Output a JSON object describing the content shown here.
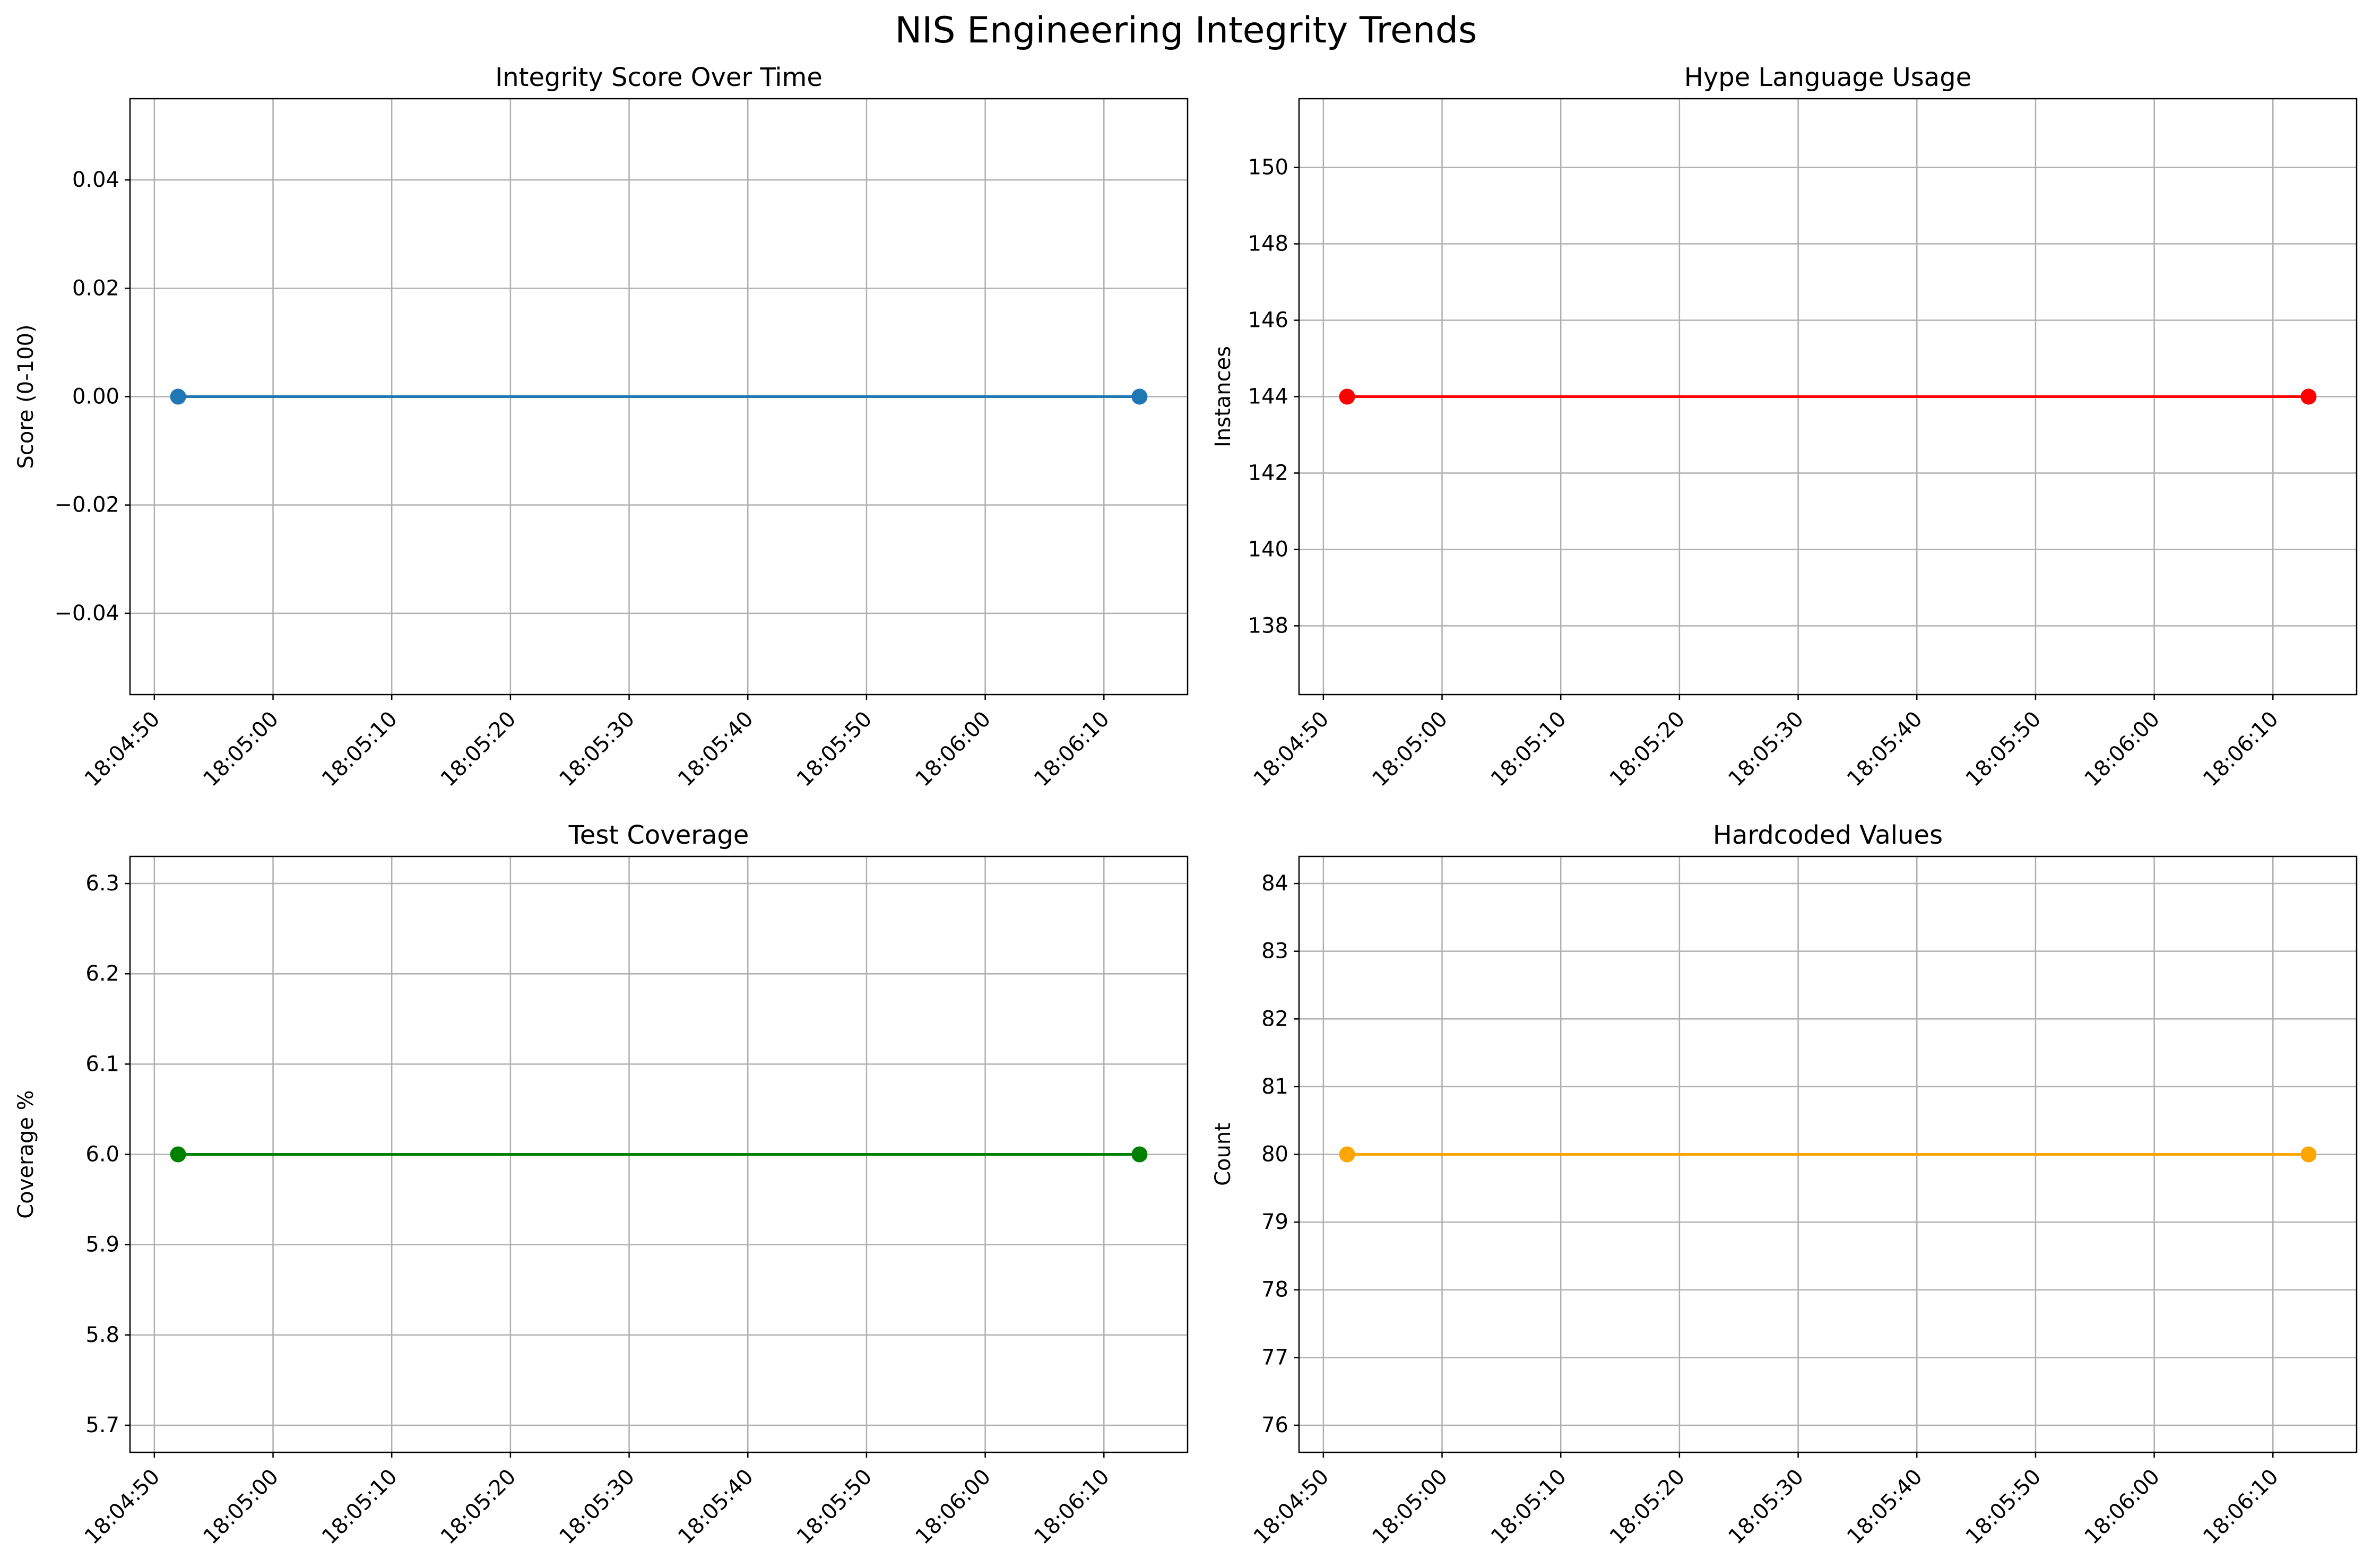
{
  "figure": {
    "title": "NIS Engineering Integrity Trends"
  },
  "chart_data": [
    {
      "type": "line",
      "title": "Integrity Score Over Time",
      "xlabel": "",
      "ylabel": "Score (0-100)",
      "color": "#1f77b4",
      "grid": true,
      "x_ticks": [
        "18:04:50",
        "18:05:00",
        "18:05:10",
        "18:05:20",
        "18:05:30",
        "18:05:40",
        "18:05:50",
        "18:06:00",
        "18:06:10"
      ],
      "xlim": [
        "18:04:50",
        "18:06:10"
      ],
      "ylim": [
        -0.055,
        0.055
      ],
      "y_ticks": [
        "−0.04",
        "−0.02",
        "0.00",
        "0.02",
        "0.04"
      ],
      "y_tick_values": [
        -0.04,
        -0.02,
        0.0,
        0.02,
        0.04
      ],
      "series": [
        {
          "x": [
            "18:04:52",
            "18:06:13"
          ],
          "y": [
            0,
            0
          ]
        }
      ]
    },
    {
      "type": "line",
      "title": "Hype Language Usage",
      "xlabel": "",
      "ylabel": "Instances",
      "color": "#ff0000",
      "grid": true,
      "x_ticks": [
        "18:04:50",
        "18:05:00",
        "18:05:10",
        "18:05:20",
        "18:05:30",
        "18:05:40",
        "18:05:50",
        "18:06:00",
        "18:06:10"
      ],
      "xlim": [
        "18:04:50",
        "18:06:10"
      ],
      "ylim": [
        136.2,
        151.8
      ],
      "y_ticks": [
        "138",
        "140",
        "142",
        "144",
        "146",
        "148",
        "150"
      ],
      "y_tick_values": [
        138,
        140,
        142,
        144,
        146,
        148,
        150
      ],
      "series": [
        {
          "x": [
            "18:04:52",
            "18:06:13"
          ],
          "y": [
            144,
            144
          ]
        }
      ]
    },
    {
      "type": "line",
      "title": "Test Coverage",
      "xlabel": "",
      "ylabel": "Coverage %",
      "color": "#008000",
      "grid": true,
      "x_ticks": [
        "18:04:50",
        "18:05:00",
        "18:05:10",
        "18:05:20",
        "18:05:30",
        "18:05:40",
        "18:05:50",
        "18:06:00",
        "18:06:10"
      ],
      "xlim": [
        "18:04:50",
        "18:06:10"
      ],
      "ylim": [
        5.67,
        6.33
      ],
      "y_ticks": [
        "5.7",
        "5.8",
        "5.9",
        "6.0",
        "6.1",
        "6.2",
        "6.3"
      ],
      "y_tick_values": [
        5.7,
        5.8,
        5.9,
        6.0,
        6.1,
        6.2,
        6.3
      ],
      "series": [
        {
          "x": [
            "18:04:52",
            "18:06:13"
          ],
          "y": [
            6,
            6
          ]
        }
      ]
    },
    {
      "type": "line",
      "title": "Hardcoded Values",
      "xlabel": "",
      "ylabel": "Count",
      "color": "#ffa500",
      "grid": true,
      "x_ticks": [
        "18:04:50",
        "18:05:00",
        "18:05:10",
        "18:05:20",
        "18:05:30",
        "18:05:40",
        "18:05:50",
        "18:06:00",
        "18:06:10"
      ],
      "xlim": [
        "18:04:50",
        "18:06:10"
      ],
      "ylim": [
        75.6,
        84.4
      ],
      "y_ticks": [
        "76",
        "77",
        "78",
        "79",
        "80",
        "81",
        "82",
        "83",
        "84"
      ],
      "y_tick_values": [
        76,
        77,
        78,
        79,
        80,
        81,
        82,
        83,
        84
      ],
      "series": [
        {
          "x": [
            "18:04:52",
            "18:06:13"
          ],
          "y": [
            80,
            80
          ]
        }
      ]
    }
  ]
}
